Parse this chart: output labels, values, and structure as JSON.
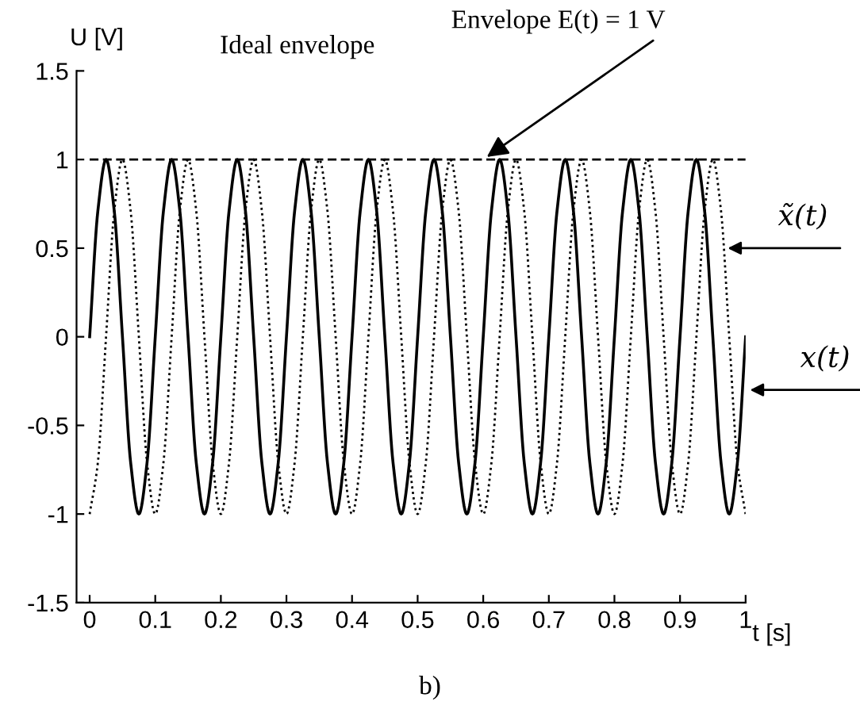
{
  "chart_data": {
    "type": "line",
    "title": "Ideal envelope",
    "xlabel": "t [s]",
    "ylabel": "U [V]",
    "x": [
      0,
      0.0125,
      0.025,
      0.0375,
      0.05,
      0.0625,
      0.075,
      0.0875,
      0.1,
      0.1125,
      0.125,
      0.1375,
      0.15,
      0.1625,
      0.175,
      0.1875,
      0.2,
      0.2125,
      0.225,
      0.2375,
      0.25,
      0.2625,
      0.275,
      0.2875,
      0.3,
      0.3125,
      0.325,
      0.3375,
      0.35,
      0.3625,
      0.375,
      0.3875,
      0.4,
      0.4125,
      0.425,
      0.4375,
      0.45,
      0.4625,
      0.475,
      0.4875,
      0.5,
      0.5125,
      0.525,
      0.5375,
      0.55,
      0.5625,
      0.575,
      0.5875,
      0.6,
      0.6125,
      0.625,
      0.6375,
      0.65,
      0.6625,
      0.675,
      0.6875,
      0.7,
      0.7125,
      0.725,
      0.7375,
      0.75,
      0.7625,
      0.775,
      0.7875,
      0.8,
      0.8125,
      0.825,
      0.8375,
      0.85,
      0.8625,
      0.875,
      0.8875,
      0.9,
      0.9125,
      0.925,
      0.9375,
      0.95,
      0.9625,
      0.975,
      0.9875,
      1
    ],
    "series": [
      {
        "color": "#000000",
        "line_style": "solid",
        "values": [
          0,
          0.71,
          1,
          0.71,
          0,
          -0.71,
          -1,
          -0.71,
          0,
          0.71,
          1,
          0.71,
          0,
          -0.71,
          -1,
          -0.71,
          0,
          0.71,
          1,
          0.71,
          0,
          -0.71,
          -1,
          -0.71,
          0,
          0.71,
          1,
          0.71,
          0,
          -0.71,
          -1,
          -0.71,
          0,
          0.71,
          1,
          0.71,
          0,
          -0.71,
          -1,
          -0.71,
          0,
          0.71,
          1,
          0.71,
          0,
          -0.71,
          -1,
          -0.71,
          0,
          0.71,
          1,
          0.71,
          0,
          -0.71,
          -1,
          -0.71,
          0,
          0.71,
          1,
          0.71,
          0,
          -0.71,
          -1,
          -0.71,
          0,
          0.71,
          1,
          0.71,
          0,
          -0.71,
          -1,
          -0.71,
          0,
          0.71,
          1,
          0.71,
          0,
          -0.71,
          -1,
          -0.71,
          0
        ]
      },
      {
        "color": "#000000",
        "line_style": "dotted",
        "values": [
          -1,
          -0.71,
          0,
          0.71,
          1,
          0.71,
          0,
          -0.71,
          -1,
          -0.71,
          0,
          0.71,
          1,
          0.71,
          0,
          -0.71,
          -1,
          -0.71,
          0,
          0.71,
          1,
          0.71,
          0,
          -0.71,
          -1,
          -0.71,
          0,
          0.71,
          1,
          0.71,
          0,
          -0.71,
          -1,
          -0.71,
          0,
          0.71,
          1,
          0.71,
          0,
          -0.71,
          -1,
          -0.71,
          0,
          0.71,
          1,
          0.71,
          0,
          -0.71,
          -1,
          -0.71,
          0,
          0.71,
          1,
          0.71,
          0,
          -0.71,
          -1,
          -0.71,
          0,
          0.71,
          1,
          0.71,
          0,
          -0.71,
          -1,
          -0.71,
          0,
          0.71,
          1,
          0.71,
          0,
          -0.71,
          -1,
          -0.71,
          0,
          0.71,
          1,
          0.71,
          0,
          -0.71,
          -1
        ]
      },
      {
        "color": "#000000",
        "line_style": "dashed",
        "x": [
          0,
          1
        ],
        "values": [
          1,
          1
        ]
      }
    ],
    "xlim": [
      -0.02,
      1.0
    ],
    "xticks": [
      0,
      0.1,
      0.2,
      0.3,
      0.4,
      0.5,
      0.6,
      0.7,
      0.8,
      0.9,
      1
    ],
    "ylim": [
      -1.5,
      1.5
    ],
    "yticks": [
      -1.5,
      -1,
      -0.5,
      0,
      0.5,
      1,
      1.5
    ],
    "grid": false,
    "legend": false,
    "marker": "none",
    "annotations": [
      {
        "text": "Envelope E(t) = 1 V",
        "x": 0.6,
        "y": 1
      },
      {
        "text": "x̃(t)",
        "x": 0.966,
        "y": 0.5
      },
      {
        "text": "x(t)",
        "x": 1.0,
        "y": -0.3
      },
      "b)"
    ]
  }
}
